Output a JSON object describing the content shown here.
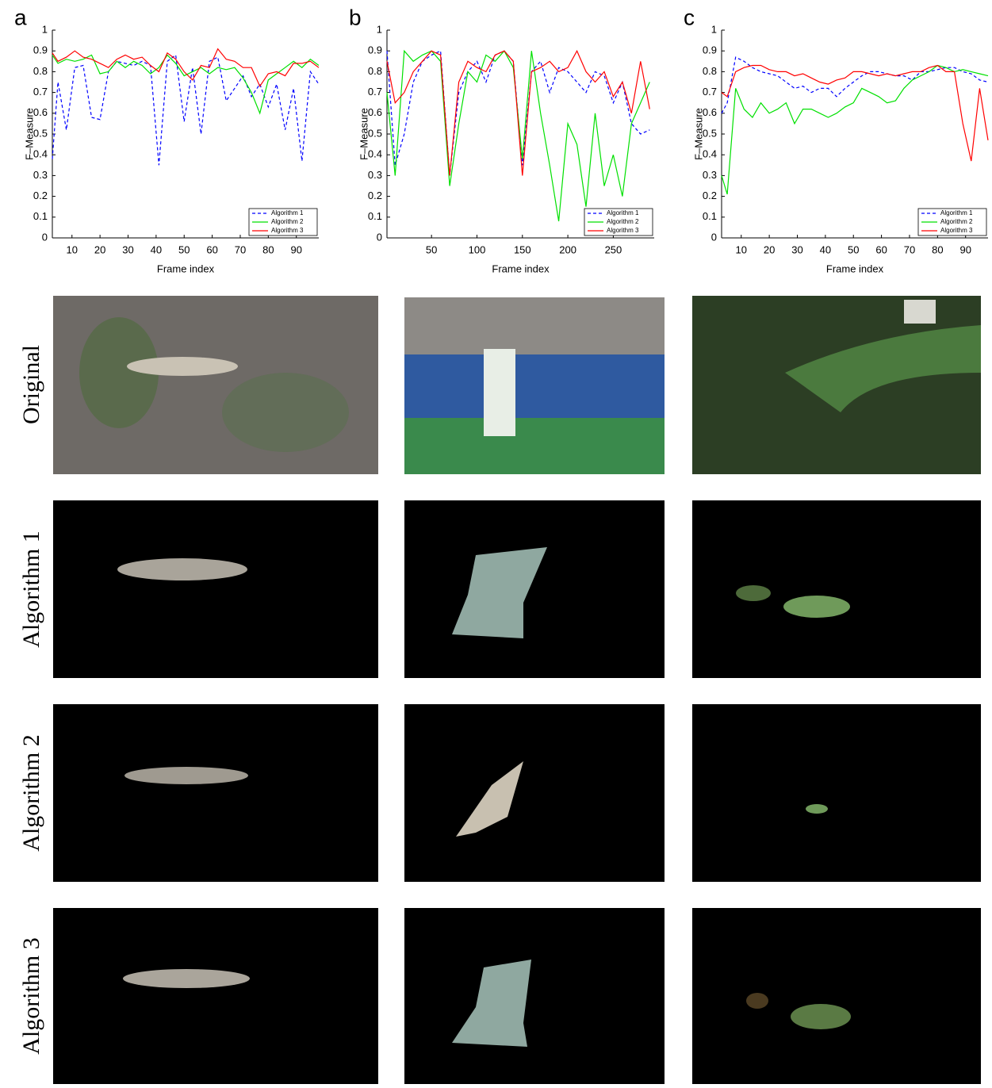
{
  "chart_data": [
    {
      "type": "line",
      "panel": "a",
      "y_label": "F–Measure",
      "x_label": "Frame index",
      "x": [
        3,
        5,
        8,
        11,
        14,
        17,
        20,
        23,
        26,
        29,
        32,
        35,
        38,
        41,
        44,
        47,
        50,
        53,
        56,
        59,
        62,
        65,
        68,
        71,
        74,
        77,
        80,
        83,
        86,
        89,
        92,
        95,
        98
      ],
      "xlim": [
        3,
        98
      ],
      "xticks": [
        10,
        20,
        30,
        40,
        50,
        60,
        70,
        80,
        90
      ],
      "ylim": [
        0,
        1
      ],
      "yticks": [
        0,
        0.1,
        0.2,
        0.3,
        0.4,
        0.5,
        0.6,
        0.7,
        0.8,
        0.9,
        1
      ],
      "legend": "lower right",
      "series": [
        {
          "name": "Algorithm 1",
          "color": "#0000ff",
          "line_style": "dashed",
          "values": [
            0.38,
            0.75,
            0.52,
            0.82,
            0.83,
            0.58,
            0.57,
            0.8,
            0.85,
            0.84,
            0.83,
            0.85,
            0.83,
            0.35,
            0.85,
            0.88,
            0.56,
            0.82,
            0.5,
            0.85,
            0.87,
            0.66,
            0.72,
            0.78,
            0.68,
            0.74,
            0.63,
            0.74,
            0.52,
            0.72,
            0.37,
            0.8,
            0.74
          ]
        },
        {
          "name": "Algorithm 2",
          "color": "#00e000",
          "line_style": "solid",
          "values": [
            0.88,
            0.84,
            0.86,
            0.85,
            0.86,
            0.88,
            0.79,
            0.8,
            0.85,
            0.82,
            0.85,
            0.83,
            0.79,
            0.82,
            0.88,
            0.84,
            0.78,
            0.8,
            0.82,
            0.79,
            0.82,
            0.81,
            0.82,
            0.77,
            0.7,
            0.6,
            0.76,
            0.79,
            0.82,
            0.85,
            0.82,
            0.86,
            0.83
          ]
        },
        {
          "name": "Algorithm 3",
          "color": "#ff0000",
          "line_style": "solid",
          "values": [
            0.89,
            0.85,
            0.87,
            0.9,
            0.87,
            0.86,
            0.84,
            0.82,
            0.86,
            0.88,
            0.86,
            0.87,
            0.83,
            0.8,
            0.89,
            0.86,
            0.8,
            0.76,
            0.83,
            0.82,
            0.91,
            0.86,
            0.85,
            0.82,
            0.82,
            0.73,
            0.79,
            0.8,
            0.78,
            0.84,
            0.84,
            0.85,
            0.82
          ]
        }
      ]
    },
    {
      "type": "line",
      "panel": "b",
      "y_label": "F–Measure",
      "x_label": "Frame index",
      "x": [
        1,
        10,
        20,
        30,
        40,
        50,
        60,
        70,
        80,
        90,
        100,
        110,
        120,
        130,
        140,
        150,
        160,
        170,
        180,
        190,
        200,
        210,
        220,
        230,
        240,
        250,
        260,
        270,
        280,
        290
      ],
      "xlim": [
        1,
        295
      ],
      "xticks": [
        50,
        100,
        150,
        200,
        250
      ],
      "ylim": [
        0,
        1
      ],
      "yticks": [
        0,
        0.1,
        0.2,
        0.3,
        0.4,
        0.5,
        0.6,
        0.7,
        0.8,
        0.9,
        1
      ],
      "legend": "lower right",
      "series": [
        {
          "name": "Algorithm 1",
          "color": "#0000ff",
          "line_style": "dashed",
          "values": [
            0.9,
            0.35,
            0.5,
            0.75,
            0.85,
            0.88,
            0.9,
            0.3,
            0.7,
            0.8,
            0.85,
            0.75,
            0.88,
            0.9,
            0.85,
            0.35,
            0.8,
            0.85,
            0.7,
            0.82,
            0.8,
            0.75,
            0.7,
            0.8,
            0.78,
            0.65,
            0.75,
            0.55,
            0.5,
            0.52
          ]
        },
        {
          "name": "Algorithm 2",
          "color": "#00e000",
          "line_style": "solid",
          "values": [
            0.7,
            0.3,
            0.9,
            0.85,
            0.88,
            0.9,
            0.85,
            0.25,
            0.55,
            0.8,
            0.75,
            0.88,
            0.85,
            0.9,
            0.82,
            0.38,
            0.9,
            0.6,
            0.35,
            0.08,
            0.55,
            0.45,
            0.15,
            0.6,
            0.25,
            0.4,
            0.2,
            0.55,
            0.65,
            0.75
          ]
        },
        {
          "name": "Algorithm 3",
          "color": "#ff0000",
          "line_style": "solid",
          "values": [
            0.85,
            0.65,
            0.7,
            0.8,
            0.85,
            0.9,
            0.88,
            0.3,
            0.75,
            0.85,
            0.82,
            0.8,
            0.88,
            0.9,
            0.85,
            0.3,
            0.8,
            0.82,
            0.85,
            0.8,
            0.82,
            0.9,
            0.8,
            0.75,
            0.8,
            0.68,
            0.75,
            0.6,
            0.85,
            0.62
          ]
        }
      ]
    },
    {
      "type": "line",
      "panel": "c",
      "y_label": "F–Measure",
      "x_label": "Frame index",
      "x": [
        3,
        5,
        8,
        11,
        14,
        17,
        20,
        23,
        26,
        29,
        32,
        35,
        38,
        41,
        44,
        47,
        50,
        53,
        56,
        59,
        62,
        65,
        68,
        71,
        74,
        77,
        80,
        83,
        86,
        89,
        92,
        95,
        98
      ],
      "xlim": [
        3,
        98
      ],
      "xticks": [
        10,
        20,
        30,
        40,
        50,
        60,
        70,
        80,
        90
      ],
      "ylim": [
        0,
        1
      ],
      "yticks": [
        0,
        0.1,
        0.2,
        0.3,
        0.4,
        0.5,
        0.6,
        0.7,
        0.8,
        0.9,
        1
      ],
      "legend": "lower right",
      "series": [
        {
          "name": "Algorithm 1",
          "color": "#0000ff",
          "line_style": "dashed",
          "values": [
            0.6,
            0.65,
            0.87,
            0.85,
            0.82,
            0.8,
            0.79,
            0.78,
            0.75,
            0.72,
            0.73,
            0.7,
            0.72,
            0.72,
            0.68,
            0.72,
            0.75,
            0.78,
            0.8,
            0.8,
            0.79,
            0.78,
            0.78,
            0.76,
            0.8,
            0.8,
            0.81,
            0.82,
            0.82,
            0.8,
            0.79,
            0.76,
            0.75
          ]
        },
        {
          "name": "Algorithm 2",
          "color": "#00e000",
          "line_style": "solid",
          "values": [
            0.3,
            0.21,
            0.72,
            0.62,
            0.58,
            0.65,
            0.6,
            0.62,
            0.65,
            0.55,
            0.62,
            0.62,
            0.6,
            0.58,
            0.6,
            0.63,
            0.65,
            0.72,
            0.7,
            0.68,
            0.65,
            0.66,
            0.72,
            0.76,
            0.78,
            0.8,
            0.83,
            0.82,
            0.8,
            0.81,
            0.8,
            0.79,
            0.78
          ]
        },
        {
          "name": "Algorithm 3",
          "color": "#ff0000",
          "line_style": "solid",
          "values": [
            0.7,
            0.68,
            0.8,
            0.82,
            0.83,
            0.83,
            0.81,
            0.8,
            0.8,
            0.78,
            0.79,
            0.77,
            0.75,
            0.74,
            0.76,
            0.77,
            0.8,
            0.8,
            0.79,
            0.78,
            0.79,
            0.78,
            0.79,
            0.8,
            0.8,
            0.82,
            0.83,
            0.8,
            0.8,
            0.55,
            0.37,
            0.72,
            0.47
          ]
        }
      ]
    }
  ],
  "image_grid": {
    "row_labels": [
      "Original",
      "Algorithm 1",
      "Algorithm 2",
      "Algorithm 3"
    ]
  }
}
